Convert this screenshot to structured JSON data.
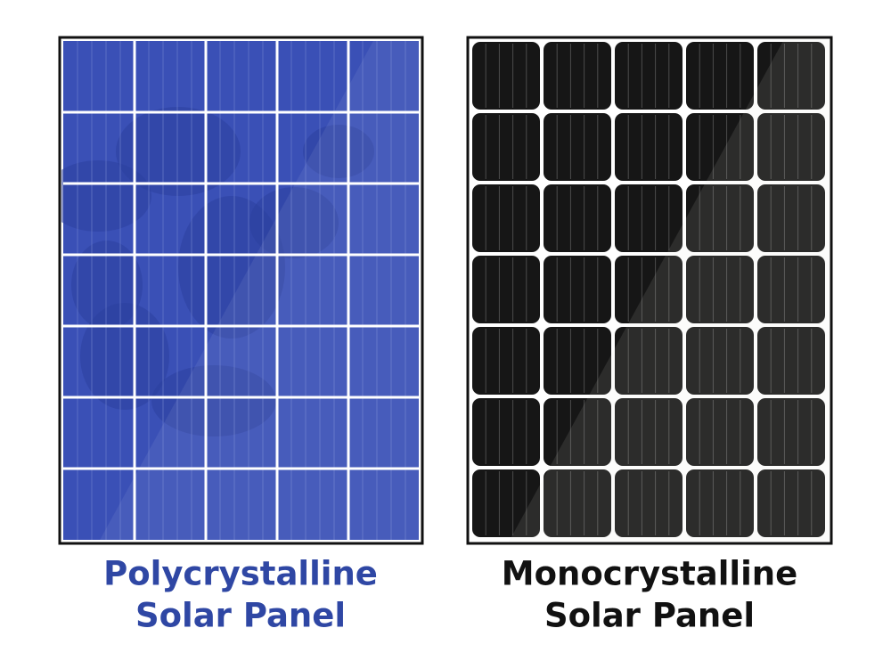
{
  "panels": [
    {
      "label": [
        "Polycrystalline",
        "Solar Panel"
      ]
    },
    {
      "label": [
        "Monocrystalline",
        "Solar Panel"
      ]
    }
  ]
}
